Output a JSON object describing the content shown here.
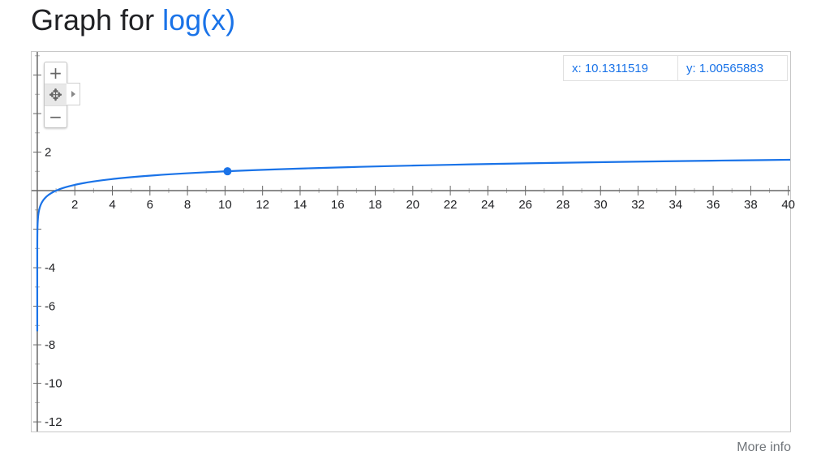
{
  "heading": {
    "prefix": "Graph for ",
    "function": "log(x)"
  },
  "readout": {
    "x": "x: 10.1311519",
    "y": "y: 1.00565883"
  },
  "controls": {
    "zoom_in": "+",
    "zoom_out": "−",
    "pan": "✥"
  },
  "footer": {
    "more_info": "More info"
  },
  "colors": {
    "curve": "#1a73e8",
    "axis": "#666666",
    "grid_tick": "#b0b0b0",
    "label": "#202124"
  },
  "chart_data": {
    "type": "line",
    "function": "log(x)",
    "xlim": [
      -0.3,
      40.1
    ],
    "ylim": [
      -12.5,
      7.2
    ],
    "x_ticks": [
      "2",
      "4",
      "6",
      "8",
      "10",
      "12",
      "14",
      "16",
      "18",
      "20",
      "22",
      "24",
      "26",
      "28",
      "30",
      "32",
      "34",
      "36",
      "38",
      "40"
    ],
    "y_ticks": [
      "2",
      "-4",
      "-6",
      "-8",
      "-10",
      "-12"
    ],
    "highlight_point": {
      "x": 10.1311519,
      "y": 1.00565883
    },
    "grid": false
  }
}
